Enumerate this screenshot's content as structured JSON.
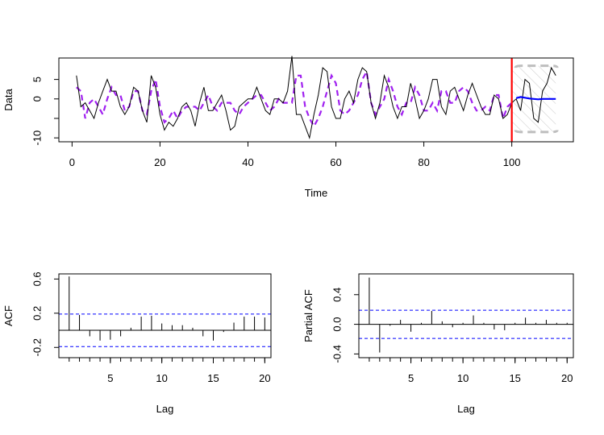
{
  "chart_data": [
    {
      "type": "line",
      "xlabel": "Time",
      "ylabel": "Data",
      "xlim": [
        -3,
        114
      ],
      "ylim": [
        -11,
        10.5
      ],
      "xticks": [
        0,
        20,
        40,
        60,
        80,
        100
      ],
      "yticks": [
        -10,
        -5,
        0,
        5
      ],
      "ytick_labels": [
        "-10",
        "",
        "0",
        "5"
      ],
      "forecast_start": 100,
      "colors": {
        "data": "#000000",
        "fitted": "#a020f0",
        "forecast": "#0000ff",
        "forecast_start": "#ff0000",
        "interval": "#bebebe"
      },
      "series": [
        {
          "role": "data",
          "x": [
            1,
            2,
            3,
            4,
            5,
            6,
            7,
            8,
            9,
            10,
            11,
            12,
            13,
            14,
            15,
            16,
            17,
            18,
            19,
            20,
            21,
            22,
            23,
            24,
            25,
            26,
            27,
            28,
            29,
            30,
            31,
            32,
            33,
            34,
            35,
            36,
            37,
            38,
            39,
            40,
            41,
            42,
            43,
            44,
            45,
            46,
            47,
            48,
            49,
            50,
            51,
            52,
            53,
            54,
            55,
            56,
            57,
            58,
            59,
            60,
            61,
            62,
            63,
            64,
            65,
            66,
            67,
            68,
            69,
            70,
            71,
            72,
            73,
            74,
            75,
            76,
            77,
            78,
            79,
            80,
            81,
            82,
            83,
            84,
            85,
            86,
            87,
            88,
            89,
            90,
            91,
            92,
            93,
            94,
            95,
            96,
            97,
            98,
            99,
            100
          ],
          "values": [
            6,
            -2,
            -1,
            -3,
            -5,
            -1,
            2,
            5,
            2,
            2,
            -2,
            -4,
            -2,
            3,
            2,
            -3,
            -6,
            6,
            3,
            -4,
            -8,
            -6,
            -7,
            -5,
            -2,
            -1,
            -3,
            -7,
            -1,
            3,
            -3,
            -3,
            -1,
            1,
            -3,
            -8,
            -7,
            -2,
            -1,
            0,
            0,
            3,
            0,
            -3,
            -4,
            0,
            0,
            -1,
            2,
            11,
            -4,
            -4,
            -7,
            -10,
            -4,
            1,
            8,
            7,
            -2,
            -5,
            -5,
            0,
            2,
            -1,
            5,
            8,
            7,
            -1,
            -5,
            -1,
            6,
            3,
            -2,
            -5,
            -2,
            -2,
            4,
            0,
            -5,
            -3,
            0,
            5,
            5,
            -2,
            -4,
            2,
            3,
            0,
            -3,
            1,
            4,
            1,
            -2,
            -4,
            -4,
            1,
            0,
            -5,
            -4,
            -1
          ]
        },
        {
          "role": "fitted",
          "x": [
            1,
            2,
            3,
            4,
            5,
            6,
            7,
            8,
            9,
            10,
            11,
            12,
            13,
            14,
            15,
            16,
            17,
            18,
            19,
            20,
            21,
            22,
            23,
            24,
            25,
            26,
            27,
            28,
            29,
            30,
            31,
            32,
            33,
            34,
            35,
            36,
            37,
            38,
            39,
            40,
            41,
            42,
            43,
            44,
            45,
            46,
            47,
            48,
            49,
            50,
            51,
            52,
            53,
            54,
            55,
            56,
            57,
            58,
            59,
            60,
            61,
            62,
            63,
            64,
            65,
            66,
            67,
            68,
            69,
            70,
            71,
            72,
            73,
            74,
            75,
            76,
            77,
            78,
            79,
            80,
            81,
            82,
            83,
            84,
            85,
            86,
            87,
            88,
            89,
            90,
            91,
            92,
            93,
            94,
            95,
            96,
            97,
            98,
            99,
            100
          ],
          "values": [
            3,
            2,
            -5,
            -1,
            0,
            -2,
            -4,
            0,
            3,
            1,
            1,
            -3,
            -2,
            2,
            2,
            -3,
            -4,
            2,
            5,
            -2,
            -6,
            -5,
            -3,
            -5,
            -3,
            -2,
            -2,
            -2,
            -3,
            -1,
            1,
            -2,
            -3,
            -1,
            -1,
            -1,
            -3,
            -4,
            -2,
            -1,
            0,
            1,
            1,
            -1,
            -3,
            -2,
            0,
            -1,
            -1,
            -1,
            6,
            6,
            -2,
            -5,
            -7,
            -5,
            -2,
            2,
            6,
            4,
            -3,
            -4,
            -3,
            -1,
            1,
            5,
            7,
            -1,
            -4,
            -2,
            0,
            5,
            2,
            -2,
            -4,
            -1,
            -1,
            3,
            1,
            -3,
            -3,
            -1,
            -3,
            2,
            2,
            -1,
            -1,
            2,
            3,
            2,
            -1,
            -3,
            -3,
            -2,
            -3,
            1,
            1,
            -5,
            -2,
            -1
          ]
        },
        {
          "role": "future",
          "x": [
            100,
            101,
            102,
            103,
            104,
            105,
            106,
            107,
            108,
            109,
            110
          ],
          "values": [
            -1,
            0,
            -3,
            5,
            4,
            -5,
            -6,
            2,
            4,
            8,
            6
          ]
        },
        {
          "role": "forecast",
          "x": [
            101,
            102,
            103,
            104,
            105,
            106,
            107,
            108,
            109,
            110
          ],
          "values": [
            0.2,
            0.5,
            0.3,
            0.1,
            0.0,
            -0.1,
            0.0,
            0.0,
            0.0,
            0.0
          ]
        }
      ],
      "interval": {
        "x": [
          101,
          110
        ],
        "lower": [
          -6,
          -8.5
        ],
        "upper": [
          6,
          8.5
        ]
      }
    },
    {
      "type": "bar",
      "xlabel": "Lag",
      "ylabel": "ACF",
      "xlim": [
        0,
        20.6
      ],
      "ylim": [
        -0.32,
        0.66
      ],
      "xticks": [
        5,
        10,
        15,
        20
      ],
      "yticks": [
        -0.2,
        0.2,
        0.6
      ],
      "ci": [
        -0.19,
        0.19
      ],
      "lags": [
        1,
        2,
        3,
        4,
        5,
        6,
        7,
        8,
        9,
        10,
        11,
        12,
        13,
        14,
        15,
        16,
        17,
        18,
        19,
        20
      ],
      "values": [
        0.63,
        0.18,
        -0.07,
        -0.12,
        -0.11,
        -0.07,
        0.03,
        0.16,
        0.17,
        0.08,
        0.06,
        0.06,
        0.03,
        -0.07,
        -0.12,
        -0.02,
        0.09,
        0.16,
        0.16,
        0.15
      ]
    },
    {
      "type": "bar",
      "xlabel": "Lag",
      "ylabel": "Partial ACF",
      "xlim": [
        0,
        20.6
      ],
      "ylim": [
        -0.45,
        0.68
      ],
      "xticks": [
        5,
        10,
        15,
        20
      ],
      "yticks": [
        -0.4,
        0.0,
        0.4
      ],
      "ytick_labels": [
        "-0.4",
        "0.0",
        "0.4"
      ],
      "ci": [
        -0.19,
        0.19
      ],
      "lags": [
        1,
        2,
        3,
        4,
        5,
        6,
        7,
        8,
        9,
        10,
        11,
        12,
        13,
        14,
        15,
        16,
        17,
        18,
        19,
        20
      ],
      "values": [
        0.63,
        -0.38,
        -0.02,
        0.06,
        -0.1,
        0.02,
        0.18,
        0.04,
        -0.04,
        0.02,
        0.12,
        0.02,
        -0.07,
        -0.08,
        0.02,
        0.09,
        0.02,
        0.06,
        0.02,
        0.02
      ]
    }
  ]
}
